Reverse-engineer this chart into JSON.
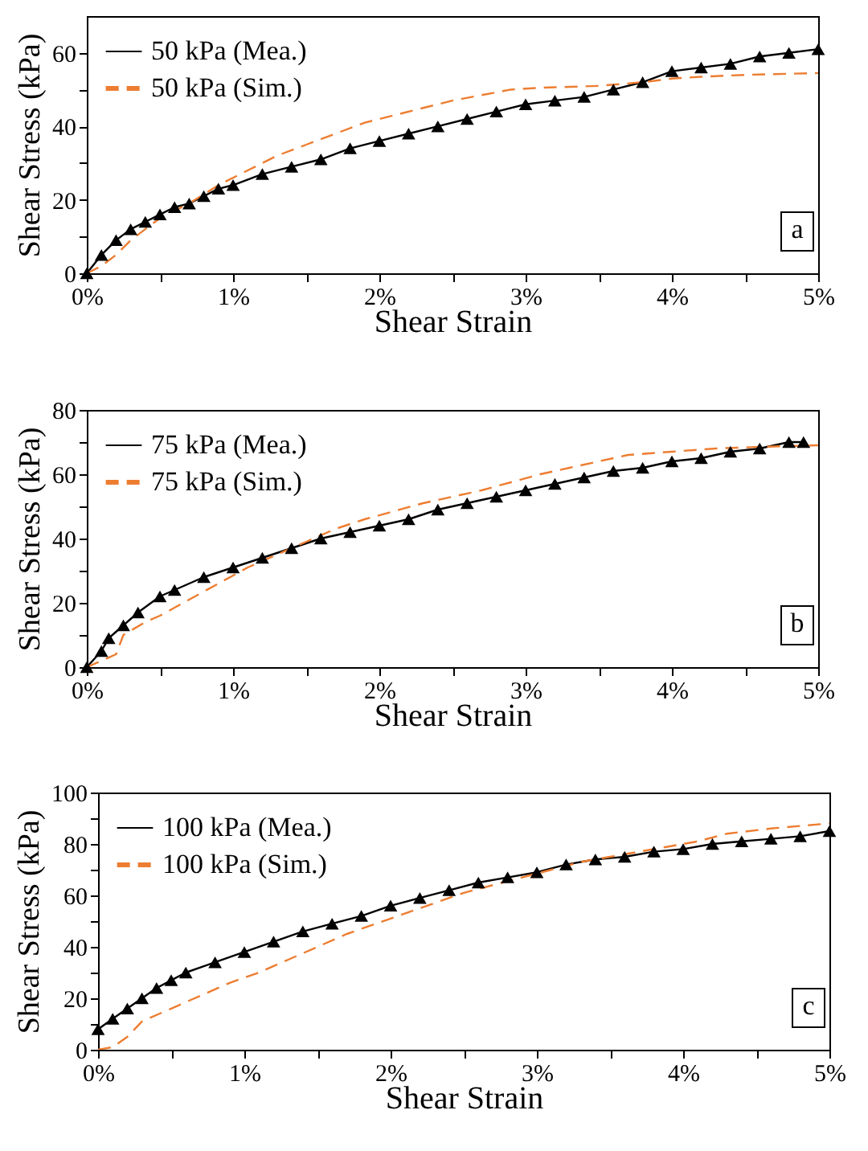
{
  "chart_data": [
    {
      "type": "line",
      "xlabel": "Shear Strain",
      "ylabel": "Shear Stress (kPa)",
      "xlim": [
        0,
        5
      ],
      "ylim": [
        0,
        70
      ],
      "xticks": [
        {
          "value": 0,
          "label": "0%"
        },
        {
          "value": 0.5,
          "label": null
        },
        {
          "value": 1,
          "label": "1%"
        },
        {
          "value": 1.5,
          "label": null
        },
        {
          "value": 2,
          "label": "2%"
        },
        {
          "value": 2.5,
          "label": null
        },
        {
          "value": 3,
          "label": "3%"
        },
        {
          "value": 3.5,
          "label": null
        },
        {
          "value": 4,
          "label": "4%"
        },
        {
          "value": 4.5,
          "label": null
        },
        {
          "value": 5,
          "label": "5%"
        }
      ],
      "yticks": [
        0,
        {
          "value": 10,
          "label": null
        },
        20,
        {
          "value": 30,
          "label": null
        },
        40,
        {
          "value": 50,
          "label": null
        },
        60
      ],
      "legend": "top left",
      "annotations": [
        "a"
      ],
      "series": [
        {
          "name": "50 kPa (Mea.)",
          "color": "#000000",
          "marker": "triangle",
          "line_style": "solid",
          "x": [
            0,
            0.1,
            0.2,
            0.3,
            0.4,
            0.5,
            0.6,
            0.7,
            0.8,
            0.9,
            1.0,
            1.2,
            1.4,
            1.6,
            1.8,
            2.0,
            2.2,
            2.4,
            2.6,
            2.8,
            3.0,
            3.2,
            3.4,
            3.6,
            3.8,
            4.0,
            4.2,
            4.4,
            4.6,
            4.8,
            5.0
          ],
          "values": [
            0,
            5,
            9,
            12,
            14,
            16,
            18,
            19,
            21,
            23,
            24,
            27,
            29,
            31,
            34,
            36,
            38,
            40,
            42,
            44,
            46,
            47,
            48,
            50,
            52,
            55,
            56,
            57,
            59,
            60,
            61
          ]
        },
        {
          "name": "50 kPa (Sim.)",
          "color": "#ed7d31",
          "marker": "none",
          "line_style": "dashed",
          "x": [
            0,
            0.1,
            0.2,
            0.3,
            0.4,
            0.5,
            0.7,
            0.9,
            1.1,
            1.3,
            1.5,
            1.7,
            1.9,
            2.1,
            2.3,
            2.5,
            2.7,
            2.9,
            3.1,
            3.5,
            3.8,
            4.0,
            4.2,
            4.5,
            5.0
          ],
          "values": [
            0,
            2,
            5,
            9,
            12,
            15,
            19,
            24,
            28,
            32,
            35,
            38,
            41,
            43,
            45,
            47,
            48.5,
            50,
            50.5,
            51,
            52,
            53,
            53.5,
            54,
            54.5
          ]
        }
      ]
    },
    {
      "type": "line",
      "xlabel": "Shear Strain",
      "ylabel": "Shear Stress (kPa)",
      "xlim": [
        0,
        5
      ],
      "ylim": [
        0,
        80
      ],
      "xticks": [
        {
          "value": 0,
          "label": "0%"
        },
        {
          "value": 0.5,
          "label": null
        },
        {
          "value": 1,
          "label": "1%"
        },
        {
          "value": 1.5,
          "label": null
        },
        {
          "value": 2,
          "label": "2%"
        },
        {
          "value": 2.5,
          "label": null
        },
        {
          "value": 3,
          "label": "3%"
        },
        {
          "value": 3.5,
          "label": null
        },
        {
          "value": 4,
          "label": "4%"
        },
        {
          "value": 4.5,
          "label": null
        },
        {
          "value": 5,
          "label": "5%"
        }
      ],
      "yticks": [
        0,
        {
          "value": 10,
          "label": null
        },
        20,
        {
          "value": 30,
          "label": null
        },
        40,
        {
          "value": 50,
          "label": null
        },
        60,
        {
          "value": 70,
          "label": null
        },
        80
      ],
      "legend": "top left",
      "annotations": [
        "b"
      ],
      "series": [
        {
          "name": "75 kPa (Mea.)",
          "color": "#000000",
          "marker": "triangle",
          "line_style": "solid",
          "x": [
            0,
            0.1,
            0.15,
            0.25,
            0.35,
            0.5,
            0.6,
            0.8,
            1.0,
            1.2,
            1.4,
            1.6,
            1.8,
            2.0,
            2.2,
            2.4,
            2.6,
            2.8,
            3.0,
            3.2,
            3.4,
            3.6,
            3.8,
            4.0,
            4.2,
            4.4,
            4.6,
            4.8,
            4.9
          ],
          "values": [
            0,
            5,
            9,
            13,
            17,
            22,
            24,
            28,
            31,
            34,
            37,
            40,
            42,
            44,
            46,
            49,
            51,
            53,
            55,
            57,
            59,
            61,
            62,
            64,
            65,
            67,
            68,
            70,
            70
          ]
        },
        {
          "name": "75 kPa (Sim.)",
          "color": "#ed7d31",
          "marker": "none",
          "line_style": "dashed",
          "x": [
            0,
            0.2,
            0.25,
            0.4,
            0.5,
            0.7,
            0.9,
            1.1,
            1.3,
            1.5,
            1.7,
            1.9,
            2.1,
            2.3,
            2.5,
            2.7,
            2.9,
            3.1,
            3.3,
            3.5,
            3.7,
            4.0,
            4.3,
            4.6,
            5.0
          ],
          "values": [
            0,
            4,
            10,
            14,
            16,
            21,
            26,
            31,
            35,
            39,
            43,
            46,
            48.5,
            51,
            53,
            55,
            57.5,
            60,
            62,
            64,
            66,
            67,
            68,
            68.5,
            69
          ]
        }
      ]
    },
    {
      "type": "line",
      "xlabel": "Shear Strain",
      "ylabel": "Shear Stress (kPa)",
      "xlim": [
        0,
        5
      ],
      "ylim": [
        0,
        100
      ],
      "xticks": [
        {
          "value": 0,
          "label": "0%"
        },
        {
          "value": 0.5,
          "label": null
        },
        {
          "value": 1,
          "label": "1%"
        },
        {
          "value": 1.5,
          "label": null
        },
        {
          "value": 2,
          "label": "2%"
        },
        {
          "value": 2.5,
          "label": null
        },
        {
          "value": 3,
          "label": "3%"
        },
        {
          "value": 3.5,
          "label": null
        },
        {
          "value": 4,
          "label": "4%"
        },
        {
          "value": 4.5,
          "label": null
        },
        {
          "value": 5,
          "label": "5%"
        }
      ],
      "yticks": [
        0,
        {
          "value": 10,
          "label": null
        },
        20,
        {
          "value": 30,
          "label": null
        },
        40,
        {
          "value": 50,
          "label": null
        },
        60,
        {
          "value": 70,
          "label": null
        },
        80,
        {
          "value": 90,
          "label": null
        },
        100
      ],
      "legend": "top left",
      "annotations": [
        "c"
      ],
      "series": [
        {
          "name": "100 kPa (Mea.)",
          "color": "#000000",
          "marker": "triangle",
          "line_style": "solid",
          "x": [
            0,
            0.1,
            0.2,
            0.3,
            0.4,
            0.5,
            0.6,
            0.8,
            1.0,
            1.2,
            1.4,
            1.6,
            1.8,
            2.0,
            2.2,
            2.4,
            2.6,
            2.8,
            3.0,
            3.2,
            3.4,
            3.6,
            3.8,
            4.0,
            4.2,
            4.4,
            4.6,
            4.8,
            5.0
          ],
          "values": [
            8,
            12,
            16,
            20,
            24,
            27,
            30,
            34,
            38,
            42,
            46,
            49,
            52,
            56,
            59,
            62,
            65,
            67,
            69,
            72,
            74,
            75,
            77,
            78,
            80,
            81,
            82,
            83,
            85
          ]
        },
        {
          "name": "100 kPa (Sim.)",
          "color": "#ed7d31",
          "marker": "none",
          "line_style": "dashed",
          "x": [
            0,
            0.1,
            0.2,
            0.3,
            0.5,
            0.7,
            0.9,
            1.1,
            1.3,
            1.5,
            1.7,
            1.9,
            2.1,
            2.3,
            2.5,
            2.7,
            2.9,
            3.1,
            3.3,
            3.5,
            3.7,
            3.9,
            4.1,
            4.3,
            4.6,
            5.0
          ],
          "values": [
            0,
            1,
            5,
            11,
            16,
            21,
            26,
            30,
            35,
            40,
            45,
            49,
            53,
            57,
            61,
            64,
            67,
            70,
            73,
            75,
            77,
            79,
            81,
            84,
            86,
            88
          ]
        }
      ]
    }
  ]
}
